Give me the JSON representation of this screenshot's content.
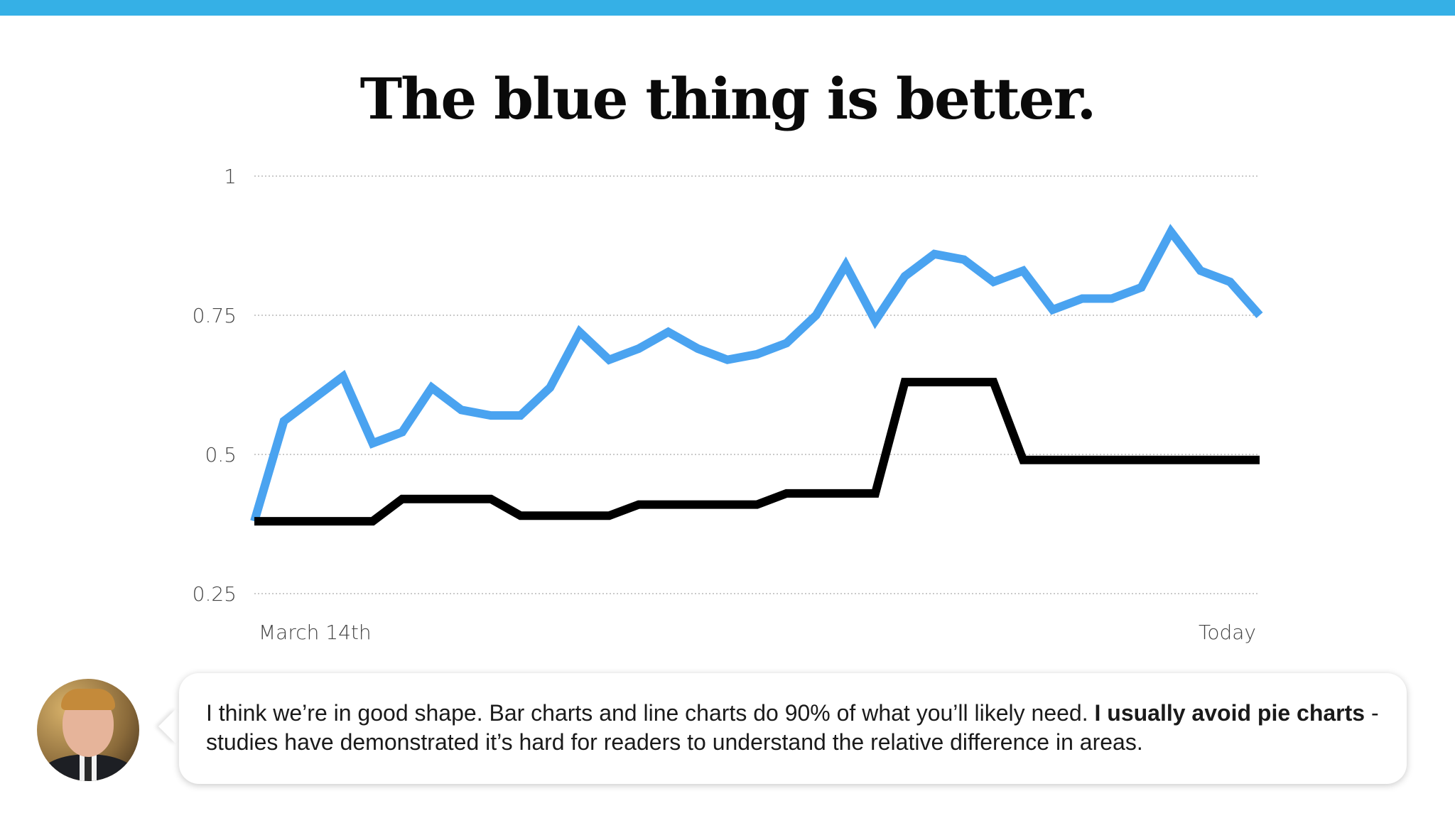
{
  "slide": {
    "title": "The blue thing is better."
  },
  "note": {
    "text_before": "I think we’re in good shape. Bar charts and line charts do 90% of what you’ll likely need. ",
    "text_bold": "I usually avoid pie charts",
    "text_after": " - studies have demonstrated it’s hard for readers to understand the relative difference in areas."
  },
  "colors": {
    "top_bar": "#35b0e6",
    "blue_series": "#4aa3f0",
    "black_series": "#000000"
  },
  "chart_data": {
    "type": "line",
    "title": "The blue thing is better.",
    "xlabel": "",
    "ylabel": "",
    "ylim": [
      0.25,
      1
    ],
    "yticks": [
      1,
      0.75,
      0.5,
      0.25
    ],
    "ytick_labels": [
      "1",
      "0.75",
      "0.5",
      "0.25"
    ],
    "x_labels": [
      "March 14th",
      "Today"
    ],
    "grid": "horizontal dotted",
    "series": [
      {
        "color": "#4aa3f0",
        "values": [
          0.38,
          0.56,
          0.6,
          0.64,
          0.52,
          0.54,
          0.62,
          0.58,
          0.57,
          0.57,
          0.62,
          0.72,
          0.67,
          0.69,
          0.72,
          0.69,
          0.67,
          0.68,
          0.7,
          0.75,
          0.84,
          0.74,
          0.82,
          0.86,
          0.85,
          0.81,
          0.83,
          0.76,
          0.78,
          0.78,
          0.8,
          0.9,
          0.83,
          0.81,
          0.75
        ]
      },
      {
        "color": "#000000",
        "values": [
          0.38,
          0.38,
          0.38,
          0.38,
          0.38,
          0.42,
          0.42,
          0.42,
          0.42,
          0.39,
          0.39,
          0.39,
          0.39,
          0.41,
          0.41,
          0.41,
          0.41,
          0.41,
          0.43,
          0.43,
          0.43,
          0.43,
          0.63,
          0.63,
          0.63,
          0.63,
          0.49,
          0.49,
          0.49,
          0.49,
          0.49,
          0.49,
          0.49,
          0.49,
          0.49
        ]
      }
    ]
  }
}
